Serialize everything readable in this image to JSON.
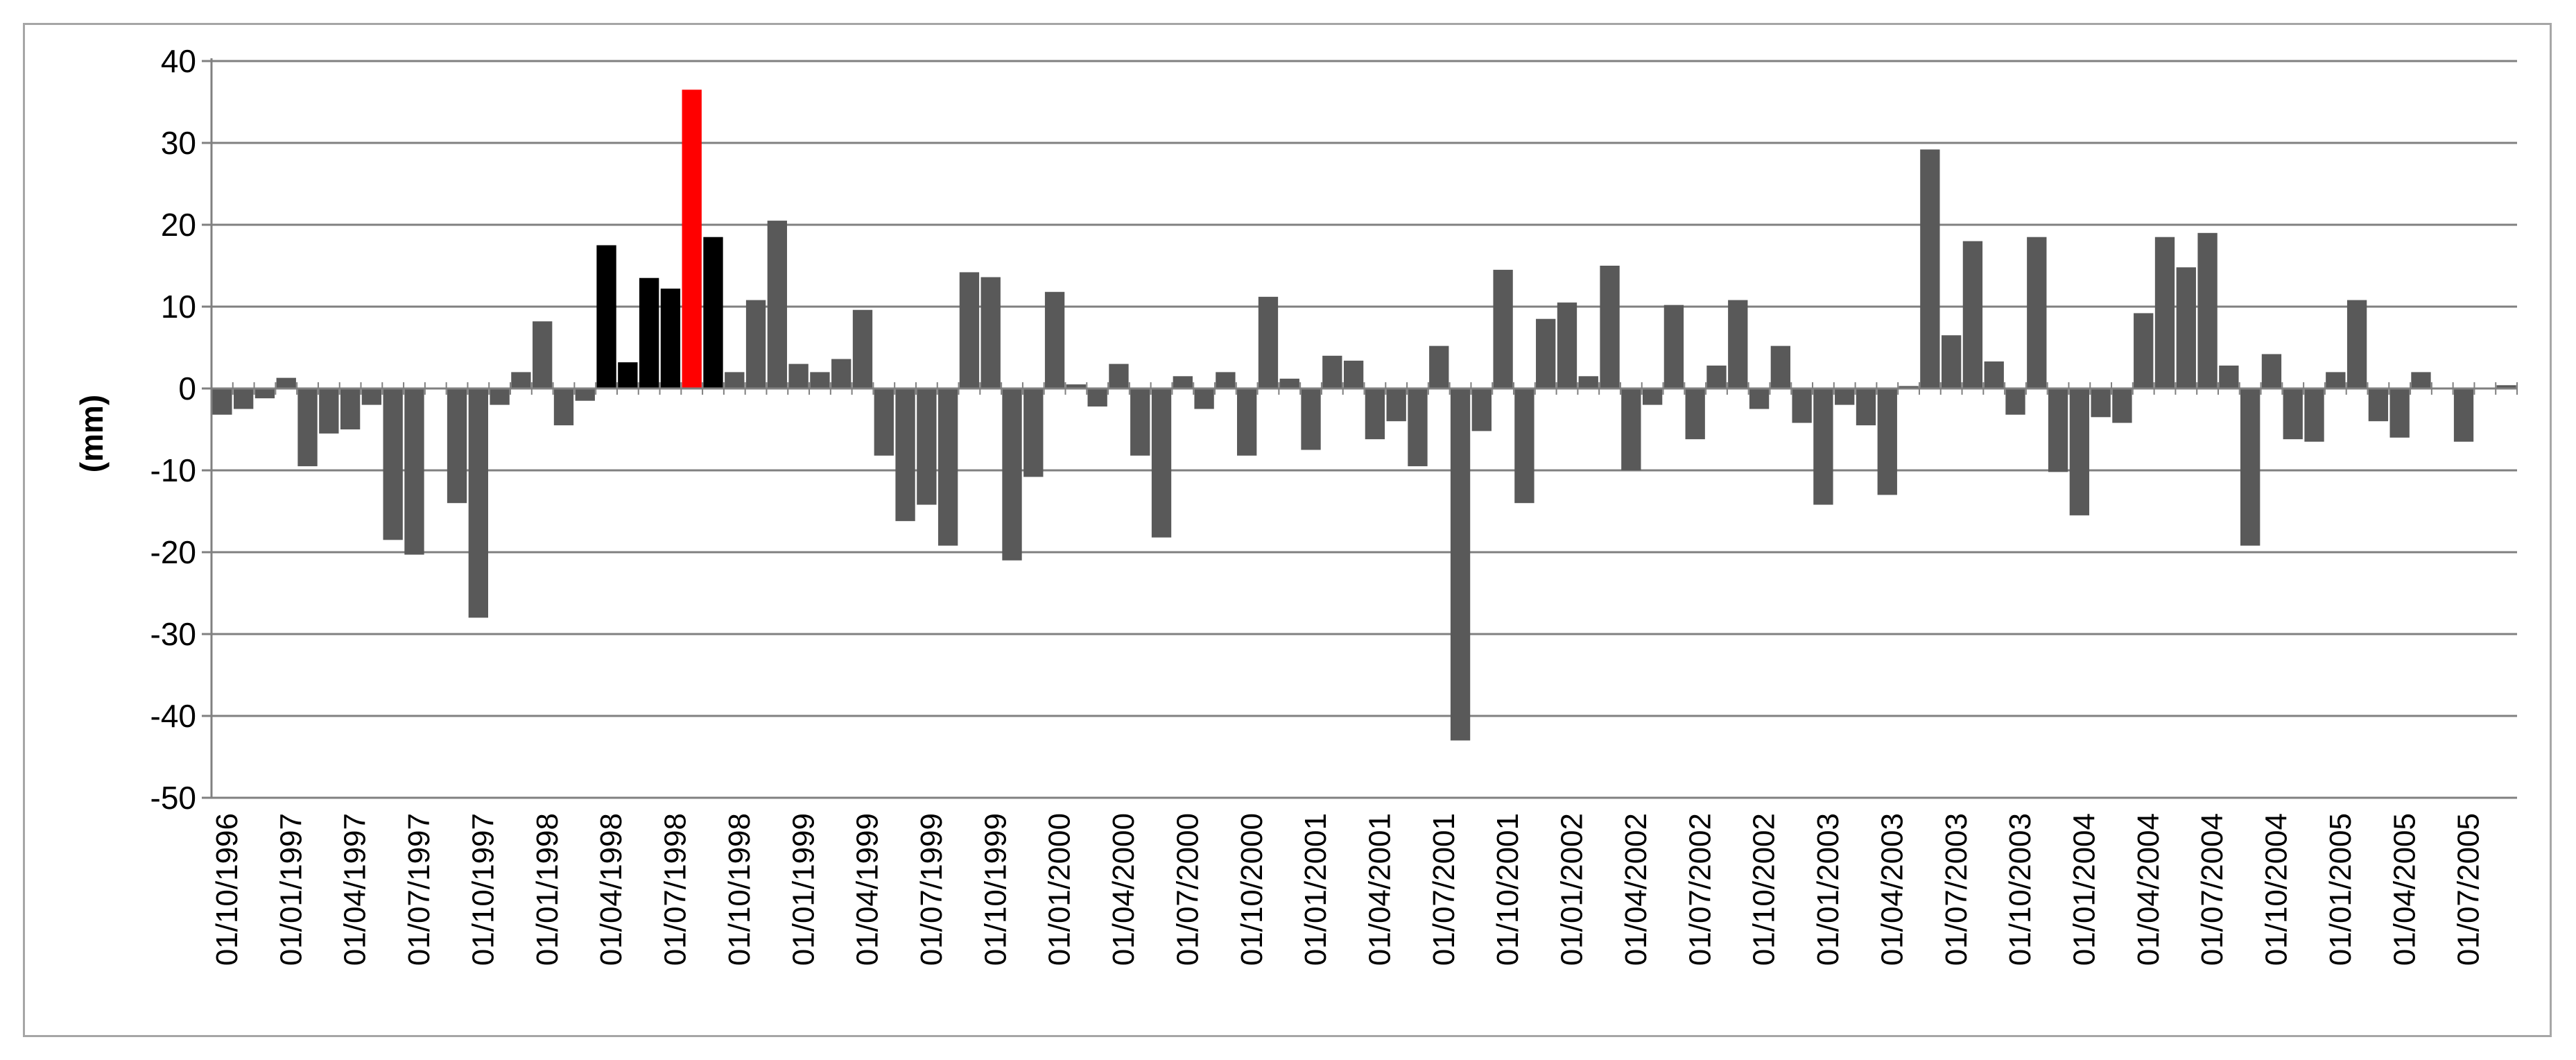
{
  "chart_data": {
    "type": "bar",
    "title": "",
    "xlabel": "",
    "ylabel": "(mm)",
    "ylim": [
      -50,
      40
    ],
    "y_ticks": [
      "40",
      "30",
      "20",
      "10",
      "0",
      "-10",
      "-20",
      "-30",
      "-40",
      "-50"
    ],
    "grid": "horizontal",
    "legend": "none",
    "colors": {
      "default": "#595959",
      "highlight_dark": "#000000",
      "highlight_red": "#ff0000",
      "grid": "#808080"
    },
    "x_tick_labels": [
      "01/10/1996",
      "01/01/1997",
      "01/04/1997",
      "01/07/1997",
      "01/10/1997",
      "01/01/1998",
      "01/04/1998",
      "01/07/1998",
      "01/10/1998",
      "01/01/1999",
      "01/04/1999",
      "01/07/1999",
      "01/10/1999",
      "01/01/2000",
      "01/04/2000",
      "01/07/2000",
      "01/10/2000",
      "01/01/2001",
      "01/04/2001",
      "01/07/2001",
      "01/10/2001",
      "01/01/2002",
      "01/04/2002",
      "01/07/2002",
      "01/10/2002",
      "01/01/2003",
      "01/04/2003",
      "01/07/2003",
      "01/10/2003",
      "01/01/2004",
      "01/04/2004",
      "01/07/2004",
      "01/10/2004",
      "01/01/2005",
      "01/04/2005",
      "01/07/2005"
    ],
    "values": [
      -3.2,
      -2.5,
      -1.2,
      1.3,
      -9.5,
      -5.5,
      -5,
      -2,
      -18.5,
      -20.3,
      0,
      -14,
      -28,
      -2,
      2,
      8.2,
      -4.5,
      -1.5,
      17.5,
      3.2,
      13.5,
      12.2,
      36.5,
      18.5,
      2,
      10.8,
      20.5,
      3,
      2,
      3.6,
      9.6,
      -8.2,
      -16.2,
      -14.2,
      -19.2,
      14.2,
      13.6,
      -21,
      -10.8,
      11.8,
      0.5,
      -2.2,
      3,
      -8.2,
      -18.2,
      1.5,
      -2.5,
      2,
      -8.2,
      11.2,
      1.2,
      -7.5,
      4,
      3.4,
      -6.2,
      -4,
      -9.5,
      5.2,
      -43,
      -5.2,
      14.5,
      -14,
      8.5,
      10.5,
      1.5,
      15,
      -10,
      -2,
      10.2,
      -6.2,
      2.8,
      10.8,
      -2.5,
      5.2,
      -4.2,
      -14.2,
      -2,
      -4.5,
      -13,
      0.3,
      29.2,
      6.5,
      18,
      3.3,
      -3.2,
      18.5,
      -10.2,
      -15.5,
      -3.5,
      -4.2,
      9.2,
      18.5,
      14.8,
      19,
      2.8,
      -19.2,
      4.2,
      -6.2,
      -6.5,
      2,
      10.8,
      -4,
      -6,
      2,
      0,
      -6.5,
      0,
      0.4
    ],
    "highlight_dark_indices": [
      18,
      19,
      20,
      21,
      23
    ],
    "highlight_red_indices": [
      22
    ]
  }
}
